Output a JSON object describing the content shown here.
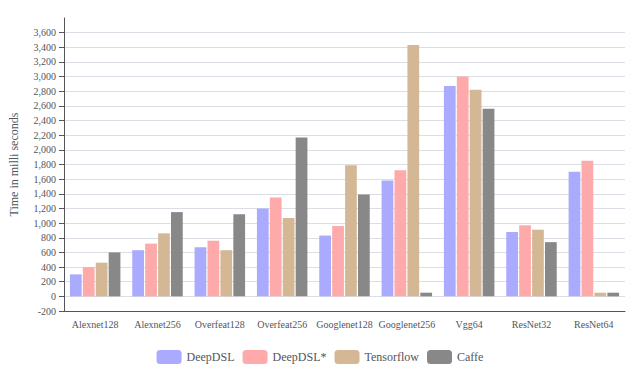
{
  "chart_data": {
    "type": "bar",
    "ylabel": "Time in milli seconds",
    "categories": [
      "Alexnet128",
      "Alexnet256",
      "Overfeat128",
      "Overfeat256",
      "Googlenet128",
      "Googlenet256",
      "Vgg64",
      "ResNet32",
      "ResNet64"
    ],
    "series": [
      {
        "name": "DeepDSL",
        "color": "#aaaaff",
        "values": [
          300,
          630,
          670,
          1200,
          830,
          1580,
          2870,
          880,
          1700
        ]
      },
      {
        "name": "DeepDSL*",
        "color": "#ffaaaa",
        "values": [
          400,
          720,
          760,
          1350,
          960,
          1720,
          3000,
          970,
          1850
        ]
      },
      {
        "name": "Tensorflow",
        "color": "#d4b896",
        "values": [
          460,
          860,
          630,
          1070,
          1790,
          3430,
          2820,
          910,
          50
        ]
      },
      {
        "name": "Caffe",
        "color": "#888888",
        "values": [
          600,
          1150,
          1120,
          2170,
          1390,
          50,
          2560,
          740,
          50
        ]
      }
    ],
    "ylim": [
      -200,
      3800
    ],
    "yticks": [
      -200,
      0,
      200,
      400,
      600,
      800,
      {
        "value": 1000,
        "label": "1,000"
      },
      {
        "value": 1200,
        "label": "1,200"
      },
      {
        "value": 1400,
        "label": "1,400"
      },
      {
        "value": 1600,
        "label": "1,600"
      },
      {
        "value": 1800,
        "label": "1,800"
      },
      {
        "value": 2000,
        "label": "2,000"
      },
      {
        "value": 2200,
        "label": "2,200"
      },
      {
        "value": 2400,
        "label": "2,400"
      },
      {
        "value": 2600,
        "label": "2,600"
      },
      {
        "value": 2800,
        "label": "2,800"
      },
      {
        "value": 3000,
        "label": "3,000"
      },
      {
        "value": 3200,
        "label": "3,200"
      },
      {
        "value": 3400,
        "label": "3,400"
      },
      {
        "value": 3600,
        "label": "3,600"
      }
    ],
    "grid": true,
    "legend": "bottom"
  }
}
